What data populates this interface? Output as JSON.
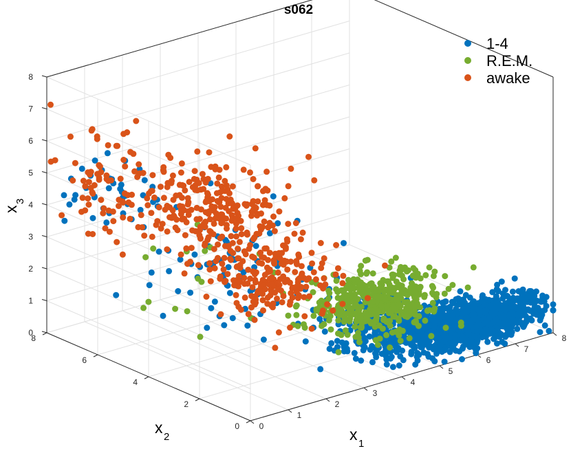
{
  "chart_data": {
    "type": "scatter",
    "title": "s062",
    "xlabel": "x",
    "xlabel_sub": "1",
    "ylabel": "x",
    "ylabel_sub": "2",
    "zlabel": "x",
    "zlabel_sub": "3",
    "xlim": [
      0,
      8
    ],
    "ylim": [
      0,
      8
    ],
    "zlim": [
      0,
      8
    ],
    "xticks": [
      "0",
      "1",
      "2",
      "3",
      "4",
      "5",
      "6",
      "7",
      "8"
    ],
    "yticks": [
      "0",
      "2",
      "4",
      "6",
      "8"
    ],
    "zticks": [
      "0",
      "1",
      "2",
      "3",
      "4",
      "5",
      "6",
      "7",
      "8"
    ],
    "grid": true,
    "legend_position": "top-right",
    "series": [
      {
        "name": "1-4",
        "color": "#0072bd",
        "clusters": [
          {
            "x": [
              6.2,
              1.0
            ],
            "y": [
              0.8,
              0.5
            ],
            "z": [
              0.6,
              0.25
            ],
            "n": 1100
          },
          {
            "x": [
              4.6,
              0.6
            ],
            "y": [
              1.8,
              0.6
            ],
            "z": [
              0.9,
              0.35
            ],
            "n": 220
          },
          {
            "x": [
              2.6,
              0.9
            ],
            "y": [
              4.2,
              1.1
            ],
            "z": [
              2.3,
              0.9
            ],
            "n": 80
          },
          {
            "x": [
              0.9,
              0.5
            ],
            "y": [
              6.8,
              0.6
            ],
            "z": [
              4.3,
              0.6
            ],
            "n": 40
          }
        ]
      },
      {
        "name": "R.E.M.",
        "color": "#77ac30",
        "clusters": [
          {
            "x": [
              4.6,
              0.7
            ],
            "y": [
              1.8,
              0.6
            ],
            "z": [
              1.5,
              0.45
            ],
            "n": 420
          },
          {
            "x": [
              2.0,
              1.0
            ],
            "y": [
              4.8,
              1.2
            ],
            "z": [
              2.6,
              0.8
            ],
            "n": 18
          }
        ]
      },
      {
        "name": "awake",
        "color": "#d95319",
        "clusters": [
          {
            "x": [
              3.0,
              0.6
            ],
            "y": [
              3.4,
              0.8
            ],
            "z": [
              2.2,
              0.6
            ],
            "n": 200
          },
          {
            "x": [
              2.4,
              0.8
            ],
            "y": [
              5.2,
              0.9
            ],
            "z": [
              3.9,
              0.7
            ],
            "n": 260
          },
          {
            "x": [
              0.9,
              0.6
            ],
            "y": [
              7.0,
              0.6
            ],
            "z": [
              4.7,
              0.7
            ],
            "n": 70
          }
        ],
        "points": [
          {
            "x": 0.1,
            "y": 8.0,
            "z": 7.1
          },
          {
            "x": 0.8,
            "y": 7.4,
            "z": 6.3
          }
        ]
      }
    ]
  }
}
